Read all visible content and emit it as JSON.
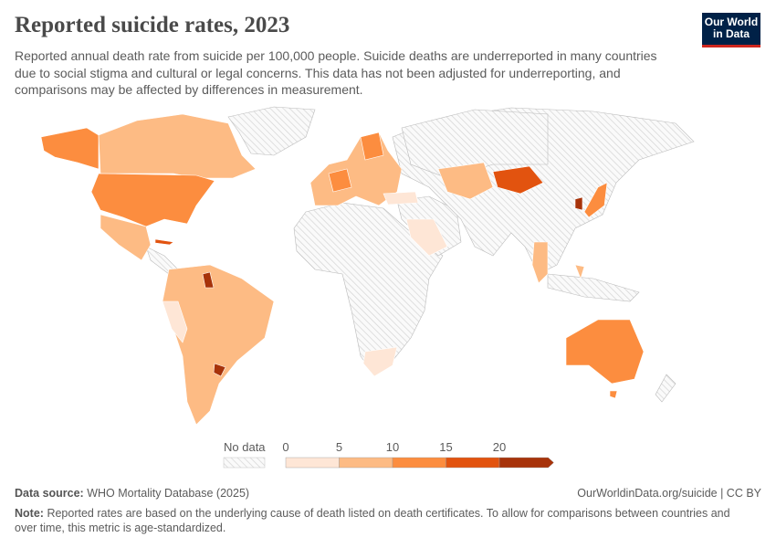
{
  "title": "Reported suicide rates, 2023",
  "subtitle": "Reported annual death rate from suicide per 100,000 people. Suicide deaths are underreported in many countries due to social stigma and cultural or legal concerns. This data has not been adjusted for underreporting, and comparisons may be affected by differences in measurement.",
  "logo": "Our World in Data",
  "legend": {
    "no_data_label": "No data",
    "ticks": [
      "0",
      "5",
      "10",
      "15",
      "20"
    ],
    "colors": [
      "#fee6d6",
      "#fdbb84",
      "#fc8d3f",
      "#e2530f",
      "#a7330a"
    ],
    "no_data_color": "#e6e6e6"
  },
  "footer": {
    "source_label": "Data source:",
    "source": "WHO Mortality Database (2025)",
    "credit": "OurWorldinData.org/suicide | CC BY",
    "note_label": "Note:",
    "note": "Reported rates are based on the underlying cause of death listed on death certificates. To allow for comparisons between countries and over time, this metric is age-standardized."
  }
}
